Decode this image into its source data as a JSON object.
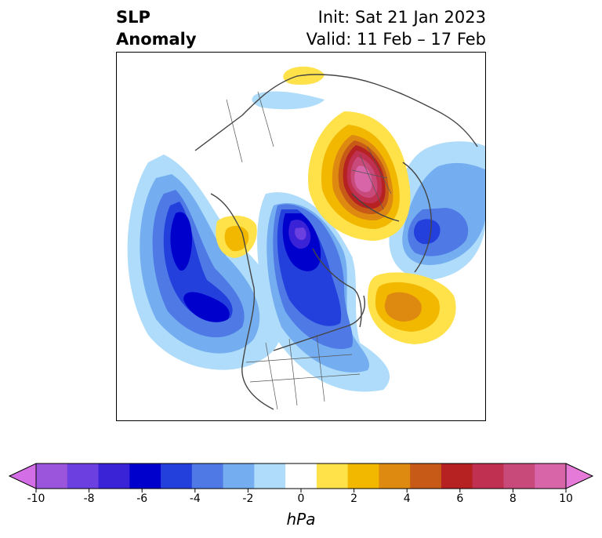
{
  "title": {
    "left_line1": "SLP",
    "left_line2": "Anomaly",
    "init": "Init: Sat 21 Jan 2023",
    "valid": "Valid: 11 Feb – 17 Feb"
  },
  "colorbar": {
    "unit": "hPa",
    "ticks": [
      "-10",
      "-8",
      "-6",
      "-4",
      "-2",
      "0",
      "2",
      "4",
      "6",
      "8",
      "10"
    ],
    "colors": [
      "#d46ee6",
      "#9b55dc",
      "#6b3fe0",
      "#3a22d6",
      "#0000cd",
      "#2440dc",
      "#4f7ae6",
      "#74aef0",
      "#aedcfa",
      "#ffffff",
      "#ffe14a",
      "#f2b800",
      "#de8a10",
      "#c85a18",
      "#b62222",
      "#c03050",
      "#c84a7a",
      "#d865a8",
      "#e67ad8"
    ],
    "range": [
      -10,
      10
    ]
  },
  "map": {
    "projection": "polar-stereographic",
    "variable": "SLP anomaly"
  }
}
